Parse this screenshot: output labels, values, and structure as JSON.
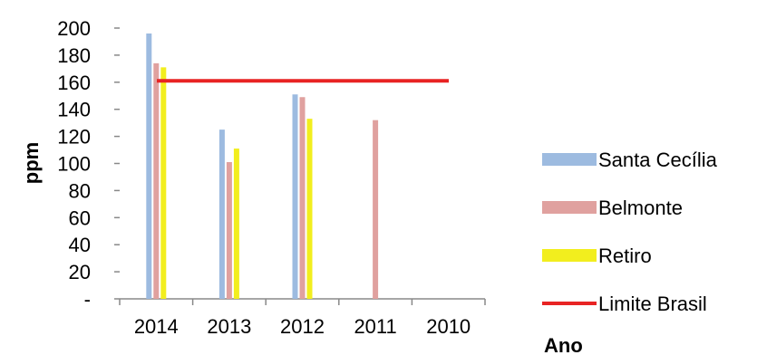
{
  "chart_data": {
    "type": "bar",
    "categories": [
      "2014",
      "2013",
      "2012",
      "2011",
      "2010"
    ],
    "series": [
      {
        "name": "Santa Cecília",
        "color": "#9dbbe0",
        "values": [
          196,
          125,
          151,
          null,
          null
        ]
      },
      {
        "name": "Belmonte",
        "color": "#e0a19f",
        "values": [
          174,
          101,
          149,
          132,
          null
        ]
      },
      {
        "name": "Retiro",
        "color": "#f2ee1e",
        "values": [
          171,
          111,
          133,
          null,
          null
        ]
      }
    ],
    "reference_line": {
      "name": "Limite Brasil",
      "value": 161,
      "color": "#e82323"
    },
    "ylim": [
      0,
      200
    ],
    "yticks": [
      0,
      20,
      40,
      60,
      80,
      100,
      120,
      140,
      160,
      180,
      200
    ],
    "ytick_labels": [
      "-",
      "20",
      "40",
      "60",
      "80",
      "100",
      "120",
      "140",
      "160",
      "180",
      "200"
    ],
    "xlabel": "Ano",
    "ylabel": "ppm",
    "legend_position": "right",
    "grid": false
  }
}
